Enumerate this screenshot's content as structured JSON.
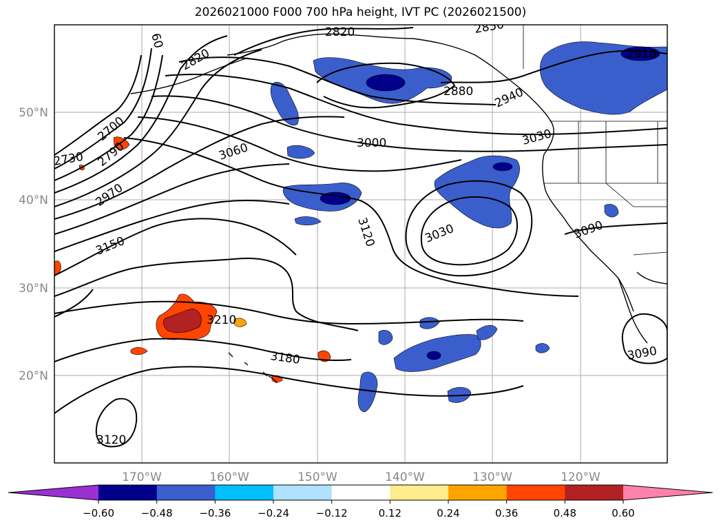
{
  "title": "2026021000 F000 700 hPa height, IVT PC (2026021500)",
  "map": {
    "lat_labels": [
      "50°N",
      "40°N",
      "30°N",
      "20°N"
    ],
    "lon_labels": [
      "170°W",
      "160°W",
      "150°W",
      "140°W",
      "130°W",
      "120°W"
    ],
    "contour_labels": [
      "60",
      "2820",
      "2850",
      "2820",
      "2910",
      "2880",
      "2940",
      "2700",
      "2790",
      "2730",
      "3060",
      "3000",
      "3030",
      "2970",
      "3150",
      "3120",
      "3030",
      "3090",
      "3210",
      "3180",
      "3090",
      "3120"
    ]
  },
  "colorbar": {
    "colors": [
      "#9b30d0",
      "#00008b",
      "#3a5fcd",
      "#00bfff",
      "#b0e2ff",
      "#ffffff",
      "#ffec8b",
      "#ffa500",
      "#ff4500",
      "#b22222",
      "#ff82ab"
    ],
    "tick_labels": [
      "−0.60",
      "−0.48",
      "−0.36",
      "−0.24",
      "−0.12",
      "0.12",
      "0.24",
      "0.36",
      "0.48",
      "0.60"
    ]
  }
}
